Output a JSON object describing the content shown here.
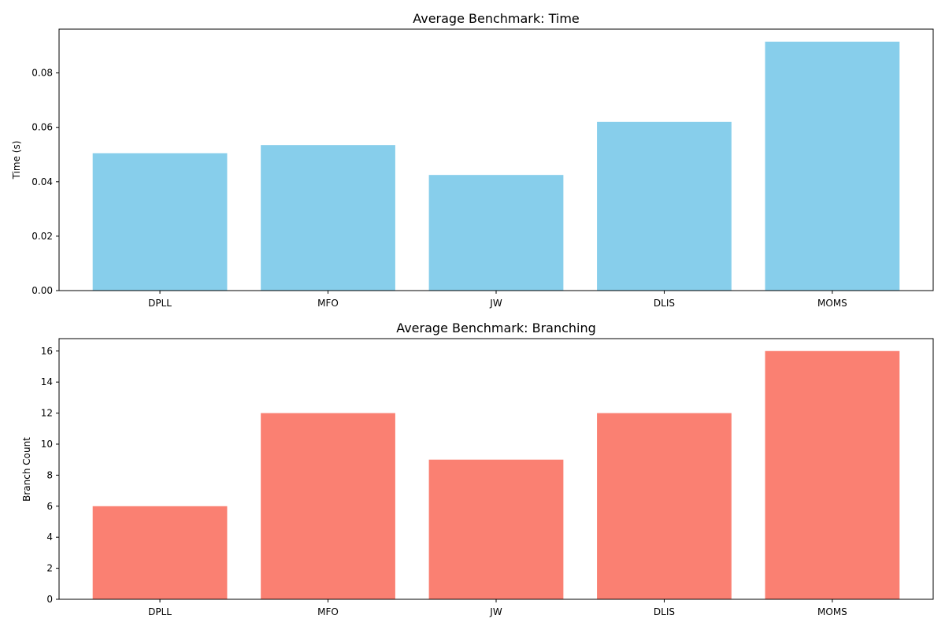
{
  "chart_data": [
    {
      "type": "bar",
      "title": "Average Benchmark: Time",
      "xlabel": "",
      "ylabel": "Time (s)",
      "categories": [
        "DPLL",
        "MFO",
        "JW",
        "DLIS",
        "MOMS"
      ],
      "values": [
        0.0505,
        0.0535,
        0.0425,
        0.062,
        0.0915
      ],
      "ylim": [
        0,
        0.0961
      ],
      "yticks": [
        0.0,
        0.02,
        0.04,
        0.06,
        0.08
      ],
      "ytick_labels": [
        "0.00",
        "0.02",
        "0.04",
        "0.06",
        "0.08"
      ],
      "color": "#87ceeb",
      "grid": false
    },
    {
      "type": "bar",
      "title": "Average Benchmark: Branching",
      "xlabel": "",
      "ylabel": "Branch Count",
      "categories": [
        "DPLL",
        "MFO",
        "JW",
        "DLIS",
        "MOMS"
      ],
      "values": [
        6,
        12,
        9,
        12,
        16
      ],
      "ylim": [
        0,
        16.8
      ],
      "yticks": [
        0,
        2,
        4,
        6,
        8,
        10,
        12,
        14,
        16
      ],
      "ytick_labels": [
        "0",
        "2",
        "4",
        "6",
        "8",
        "10",
        "12",
        "14",
        "16"
      ],
      "color": "#fa8072",
      "grid": false
    }
  ]
}
